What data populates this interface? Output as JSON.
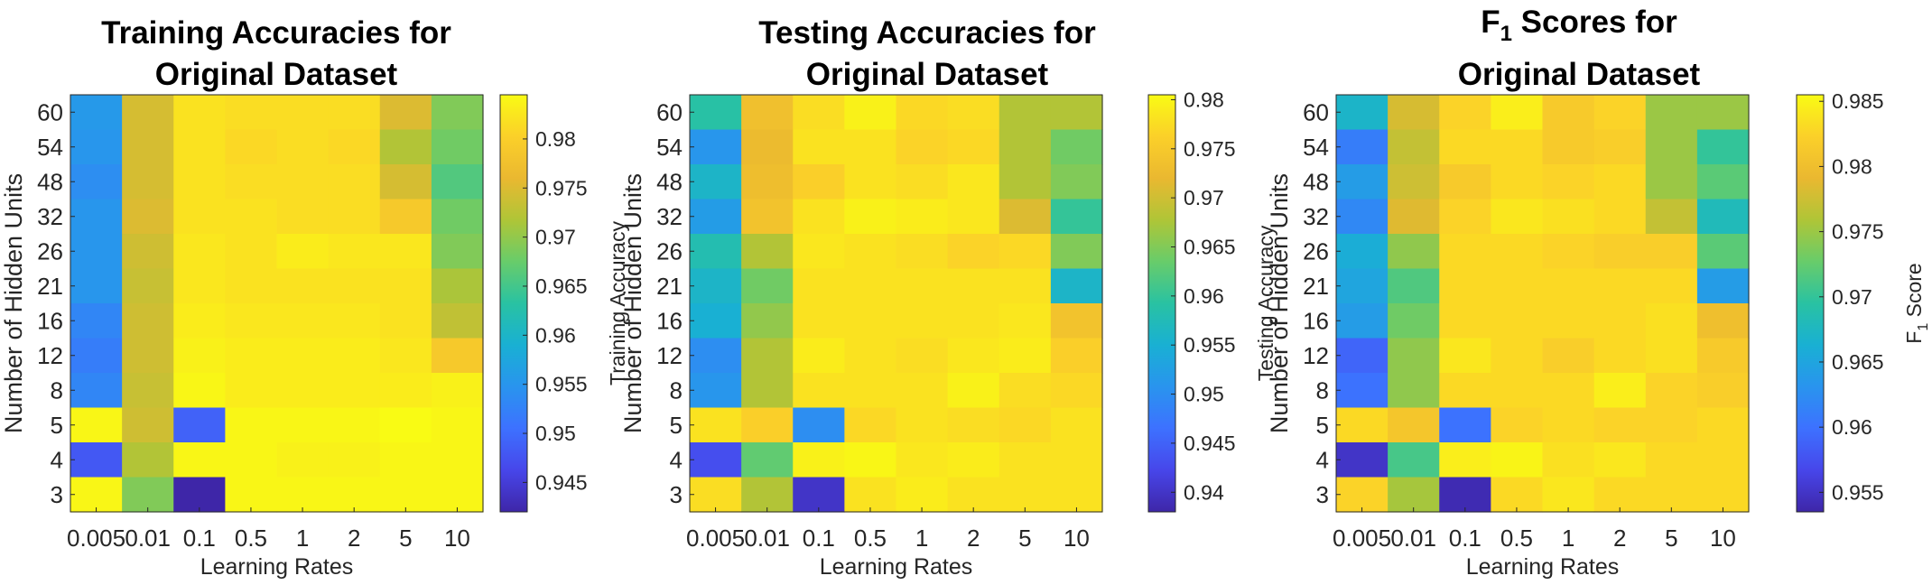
{
  "colors": {
    "colormap": "parula",
    "axis": "#262626",
    "title": "#000000",
    "background": "#ffffff"
  },
  "chart_data": [
    {
      "type": "heatmap",
      "title": [
        "Training Accuracies for",
        "Original Dataset"
      ],
      "xlabel": "Learning Rates",
      "ylabel": "Number of Hidden Units",
      "colorbar_label": "Training Accuracy",
      "x": [
        "0.005",
        "0.01",
        "0.1",
        "0.5",
        "1",
        "2",
        "5",
        "10"
      ],
      "y": [
        "60",
        "54",
        "48",
        "32",
        "26",
        "21",
        "16",
        "12",
        "8",
        "5",
        "4",
        "3"
      ],
      "clim": [
        0.942,
        0.9845
      ],
      "colorbar_ticks": [
        "0.945",
        "0.95",
        "0.955",
        "0.96",
        "0.965",
        "0.97",
        "0.975",
        "0.98"
      ],
      "values": [
        [
          0.9555,
          0.9745,
          0.982,
          0.9815,
          0.9815,
          0.9815,
          0.975,
          0.969
        ],
        [
          0.955,
          0.9745,
          0.982,
          0.981,
          0.9815,
          0.981,
          0.972,
          0.968
        ],
        [
          0.954,
          0.9745,
          0.982,
          0.9815,
          0.9815,
          0.9815,
          0.9745,
          0.966
        ],
        [
          0.955,
          0.975,
          0.982,
          0.982,
          0.9815,
          0.9815,
          0.979,
          0.968
        ],
        [
          0.955,
          0.974,
          0.9825,
          0.982,
          0.983,
          0.9825,
          0.9825,
          0.969
        ],
        [
          0.955,
          0.9735,
          0.9825,
          0.982,
          0.982,
          0.982,
          0.982,
          0.9715
        ],
        [
          0.953,
          0.974,
          0.983,
          0.9825,
          0.9825,
          0.9825,
          0.982,
          0.973
        ],
        [
          0.952,
          0.974,
          0.9835,
          0.983,
          0.983,
          0.983,
          0.9825,
          0.979
        ],
        [
          0.953,
          0.9735,
          0.984,
          0.983,
          0.983,
          0.983,
          0.983,
          0.9835
        ],
        [
          0.984,
          0.974,
          0.949,
          0.984,
          0.984,
          0.984,
          0.9845,
          0.984
        ],
        [
          0.948,
          0.972,
          0.984,
          0.984,
          0.9835,
          0.9835,
          0.984,
          0.984
        ],
        [
          0.984,
          0.969,
          0.942,
          0.984,
          0.984,
          0.984,
          0.984,
          0.984
        ]
      ]
    },
    {
      "type": "heatmap",
      "title": [
        "Testing Accuracies for",
        "Original Dataset"
      ],
      "xlabel": "Learning Rates",
      "ylabel": "Number of Hidden Units",
      "colorbar_label": "Testing Accuracy",
      "x": [
        "0.005",
        "0.01",
        "0.1",
        "0.5",
        "1",
        "2",
        "5",
        "10"
      ],
      "y": [
        "60",
        "54",
        "48",
        "32",
        "26",
        "21",
        "16",
        "12",
        "8",
        "5",
        "4",
        "3"
      ],
      "clim": [
        0.938,
        0.9805
      ],
      "colorbar_ticks": [
        "0.94",
        "0.945",
        "0.95",
        "0.955",
        "0.96",
        "0.965",
        "0.97",
        "0.975",
        "0.98"
      ],
      "values": [
        [
          0.959,
          0.9735,
          0.9775,
          0.9795,
          0.977,
          0.9775,
          0.968,
          0.968
        ],
        [
          0.951,
          0.9725,
          0.978,
          0.978,
          0.9765,
          0.977,
          0.968,
          0.964
        ],
        [
          0.956,
          0.973,
          0.976,
          0.978,
          0.9775,
          0.9785,
          0.968,
          0.965
        ],
        [
          0.952,
          0.974,
          0.978,
          0.9795,
          0.979,
          0.9785,
          0.971,
          0.96
        ],
        [
          0.958,
          0.968,
          0.9785,
          0.978,
          0.9775,
          0.9765,
          0.977,
          0.965
        ],
        [
          0.956,
          0.964,
          0.978,
          0.978,
          0.978,
          0.978,
          0.978,
          0.956
        ],
        [
          0.955,
          0.966,
          0.978,
          0.978,
          0.978,
          0.978,
          0.9785,
          0.974
        ],
        [
          0.95,
          0.968,
          0.979,
          0.978,
          0.9775,
          0.9785,
          0.979,
          0.976
        ],
        [
          0.951,
          0.968,
          0.978,
          0.978,
          0.978,
          0.9795,
          0.9775,
          0.977
        ],
        [
          0.978,
          0.976,
          0.95,
          0.977,
          0.978,
          0.9775,
          0.977,
          0.978
        ],
        [
          0.943,
          0.963,
          0.9795,
          0.98,
          0.9785,
          0.979,
          0.978,
          0.978
        ],
        [
          0.9775,
          0.968,
          0.94,
          0.978,
          0.979,
          0.978,
          0.978,
          0.978
        ]
      ]
    },
    {
      "type": "heatmap",
      "title": [
        "F",
        "1",
        " Scores for",
        "Original Dataset"
      ],
      "xlabel": "Learning Rates",
      "ylabel": "Number of Hidden Units",
      "colorbar_label": [
        "F",
        "1",
        " Score"
      ],
      "x": [
        "0.005",
        "0.01",
        "0.1",
        "0.5",
        "1",
        "2",
        "5",
        "10"
      ],
      "y": [
        "60",
        "54",
        "48",
        "32",
        "26",
        "21",
        "16",
        "12",
        "8",
        "5",
        "4",
        "3"
      ],
      "clim": [
        0.9535,
        0.9855
      ],
      "colorbar_ticks": [
        "0.955",
        "0.96",
        "0.965",
        "0.97",
        "0.975",
        "0.98",
        "0.985"
      ],
      "values": [
        [
          0.967,
          0.978,
          0.9825,
          0.9845,
          0.9815,
          0.9825,
          0.975,
          0.975
        ],
        [
          0.961,
          0.977,
          0.983,
          0.983,
          0.9815,
          0.982,
          0.975,
          0.97
        ],
        [
          0.964,
          0.9775,
          0.9815,
          0.983,
          0.9825,
          0.983,
          0.975,
          0.972
        ],
        [
          0.962,
          0.9785,
          0.9825,
          0.984,
          0.9835,
          0.983,
          0.977,
          0.968
        ],
        [
          0.966,
          0.9745,
          0.983,
          0.983,
          0.9825,
          0.982,
          0.982,
          0.972
        ],
        [
          0.965,
          0.9715,
          0.983,
          0.983,
          0.983,
          0.983,
          0.983,
          0.964
        ],
        [
          0.964,
          0.973,
          0.983,
          0.983,
          0.983,
          0.983,
          0.9835,
          0.98
        ],
        [
          0.959,
          0.9745,
          0.984,
          0.983,
          0.982,
          0.983,
          0.9835,
          0.9815
        ],
        [
          0.96,
          0.9745,
          0.983,
          0.983,
          0.983,
          0.9845,
          0.9825,
          0.982
        ],
        [
          0.983,
          0.981,
          0.96,
          0.9825,
          0.983,
          0.9825,
          0.9825,
          0.983
        ],
        [
          0.955,
          0.971,
          0.9845,
          0.985,
          0.9835,
          0.984,
          0.983,
          0.983
        ],
        [
          0.9825,
          0.9755,
          0.954,
          0.983,
          0.984,
          0.983,
          0.983,
          0.983
        ]
      ]
    }
  ]
}
